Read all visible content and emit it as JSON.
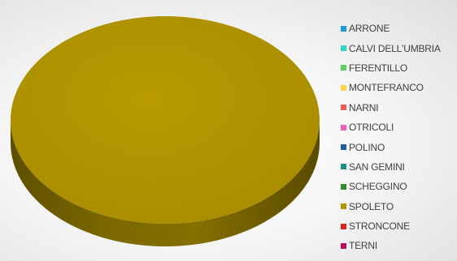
{
  "chart_data": {
    "type": "pie",
    "style": "3d",
    "categories": [
      "ARRONE",
      "CALVI DELL'UMBRIA",
      "FERENTILLO",
      "MONTEFRANCO",
      "NARNI",
      "OTRICOLI",
      "POLINO",
      "SAN GEMINI",
      "SCHEGGINO",
      "SPOLETO",
      "STRONCONE",
      "TERNI"
    ],
    "values": [
      0,
      0,
      0,
      0,
      0,
      0,
      0,
      0,
      0,
      100,
      0,
      0
    ],
    "colors": [
      "#1f9bd7",
      "#2fd5c4",
      "#5fd05f",
      "#ffd24d",
      "#f0605a",
      "#f060b8",
      "#1d5fa0",
      "#1f8f86",
      "#2e8b2e",
      "#b19400",
      "#d9261c",
      "#b0125c"
    ],
    "legend_position": "right",
    "title": ""
  }
}
